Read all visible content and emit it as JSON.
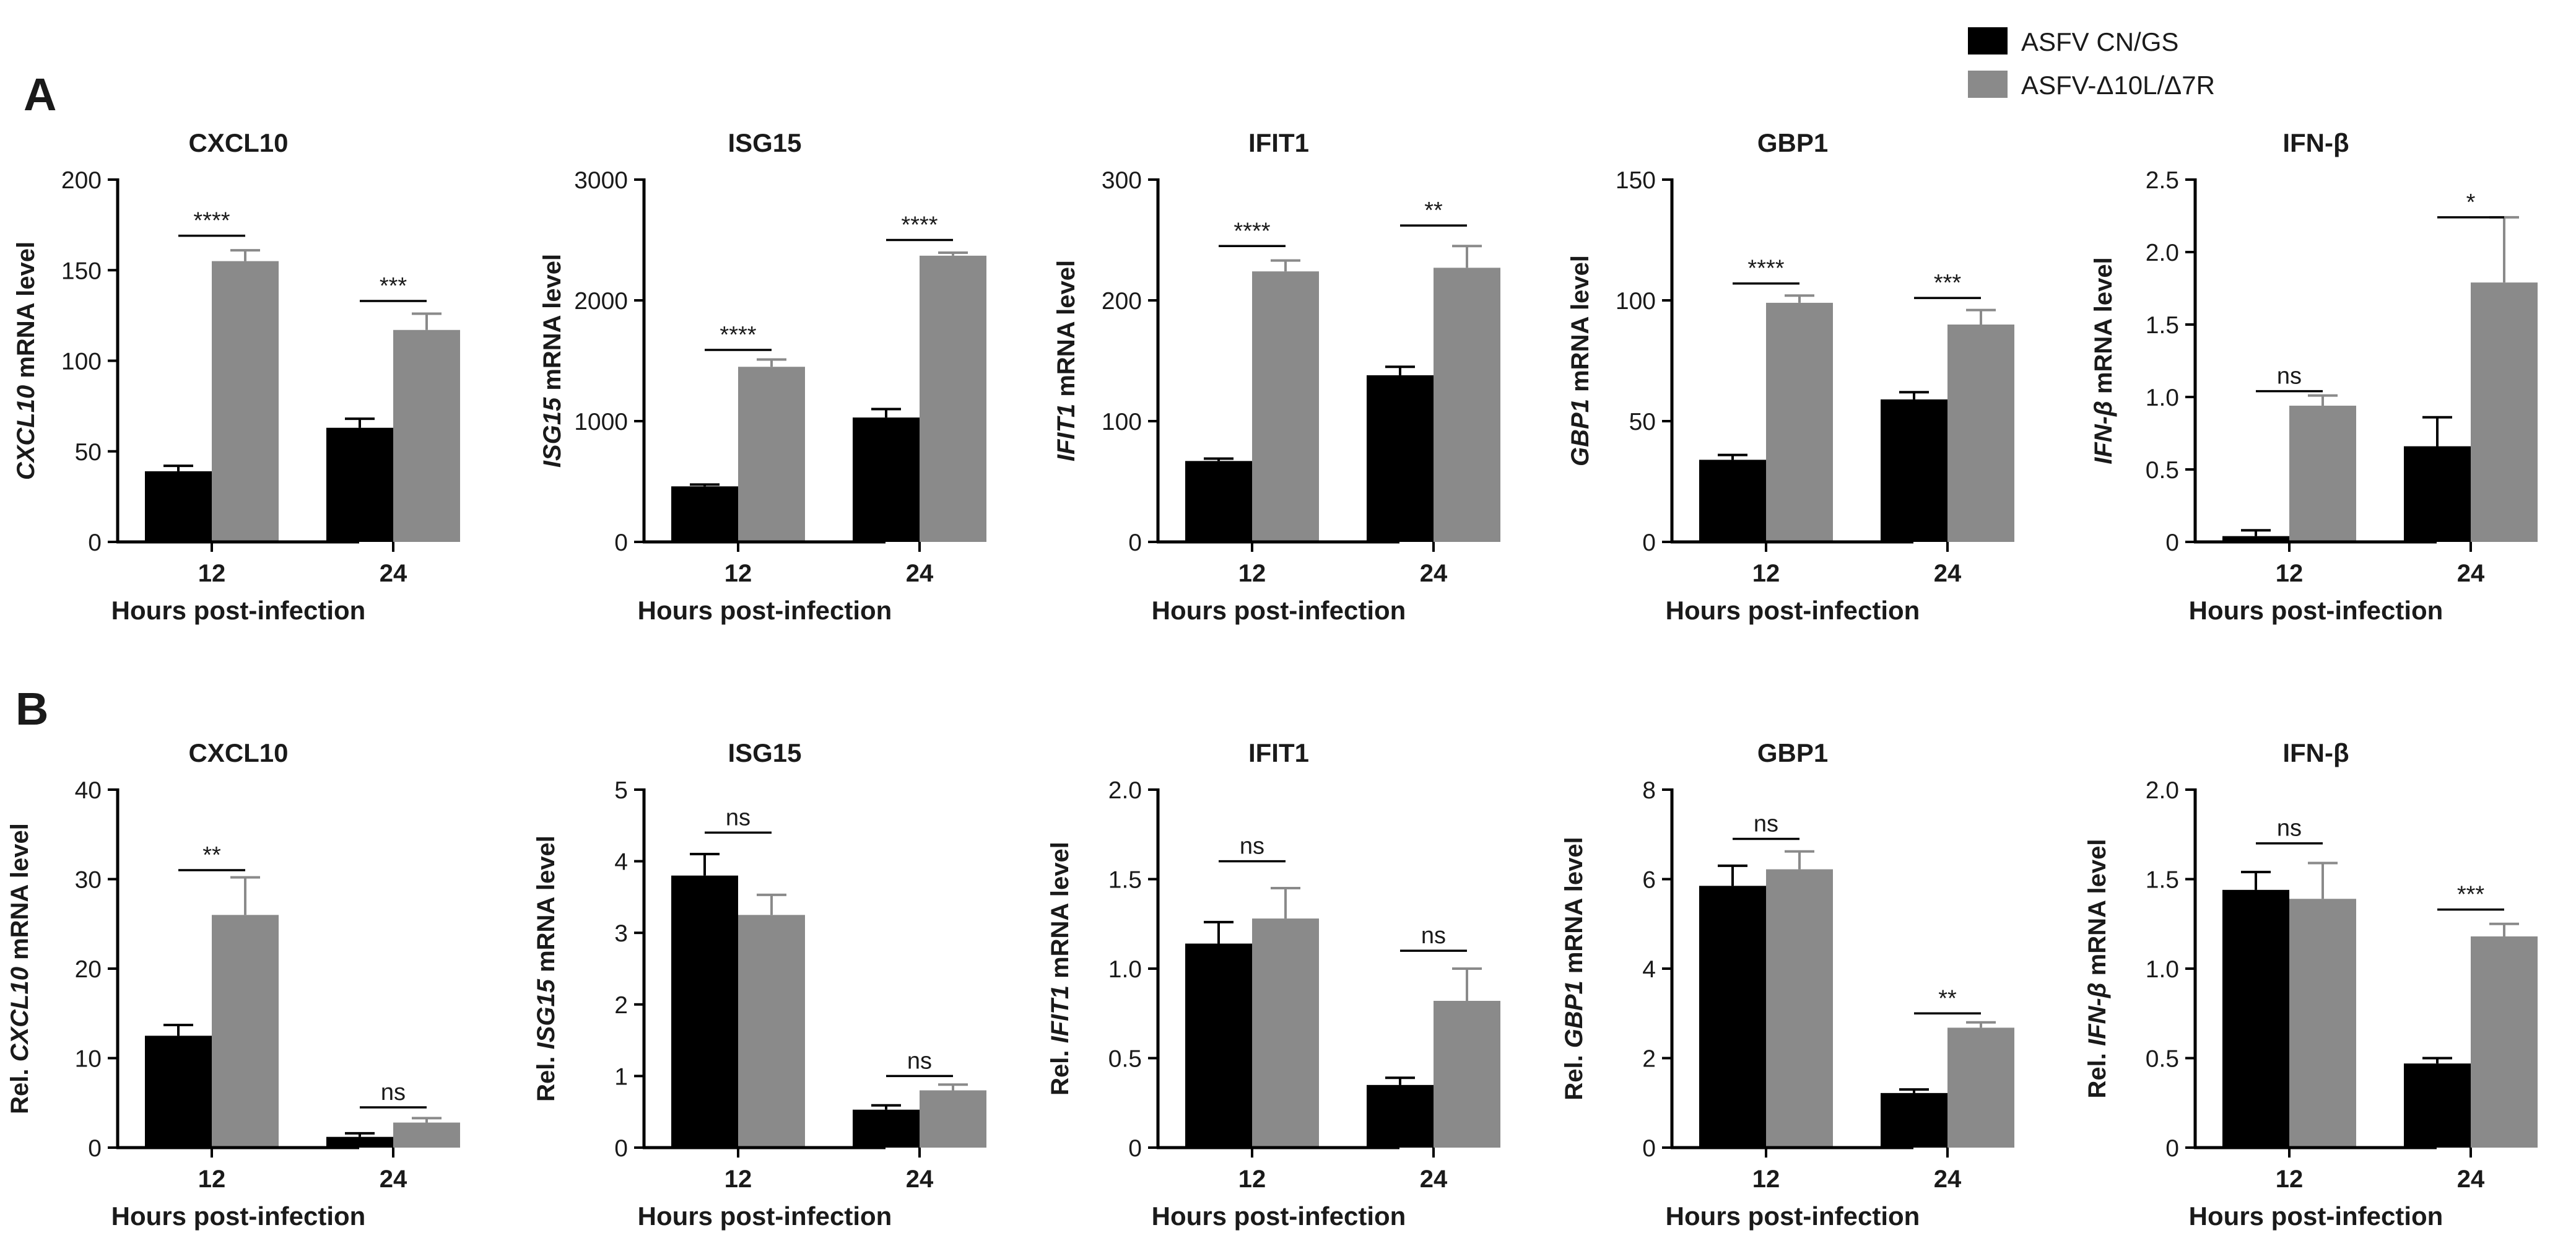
{
  "figure": {
    "panel_letters": [
      "A",
      "B"
    ],
    "xlabel": "Hours post-infection",
    "legend": {
      "placement": "top-right",
      "entries": [
        {
          "label": "ASFV CN/GS",
          "color": "#000000"
        },
        {
          "label": "ASFV-Δ10L/Δ7R",
          "color": "#8a8a8a"
        }
      ]
    }
  },
  "chart_data": [
    {
      "type": "bar",
      "panel": "A",
      "title": "CXCL10",
      "ylabel": {
        "prefix": "",
        "gene": "CXCL10",
        "suffix": " mRNA level"
      },
      "categories": [
        "12",
        "24"
      ],
      "ylim": [
        0,
        200
      ],
      "yticks": [
        0,
        50,
        100,
        150,
        200
      ],
      "series": [
        {
          "values": [
            39,
            63
          ],
          "errors": [
            3,
            5
          ],
          "color": "#000000"
        },
        {
          "values": [
            155,
            117
          ],
          "errors": [
            6,
            9
          ],
          "color": "#8a8a8a"
        }
      ],
      "significance": [
        {
          "category": "12",
          "label": "****",
          "level": 169
        },
        {
          "category": "24",
          "label": "***",
          "level": 133
        }
      ]
    },
    {
      "type": "bar",
      "panel": "A",
      "title": "ISG15",
      "ylabel": {
        "prefix": "",
        "gene": "ISG15",
        "suffix": " mRNA level"
      },
      "categories": [
        "12",
        "24"
      ],
      "ylim": [
        0,
        3000
      ],
      "yticks": [
        0,
        1000,
        2000,
        3000
      ],
      "series": [
        {
          "values": [
            460,
            1030
          ],
          "errors": [
            15,
            70
          ],
          "color": "#000000"
        },
        {
          "values": [
            1450,
            2370
          ],
          "errors": [
            60,
            25
          ],
          "color": "#8a8a8a"
        }
      ],
      "significance": [
        {
          "category": "12",
          "label": "****",
          "level": 1590
        },
        {
          "category": "24",
          "label": "****",
          "level": 2500
        }
      ]
    },
    {
      "type": "bar",
      "panel": "A",
      "title": "IFIT1",
      "ylabel": {
        "prefix": "",
        "gene": "IFIT1",
        "suffix": " mRNA level"
      },
      "categories": [
        "12",
        "24"
      ],
      "ylim": [
        0,
        300
      ],
      "yticks": [
        0,
        100,
        200,
        300
      ],
      "series": [
        {
          "values": [
            67,
            138
          ],
          "errors": [
            2,
            7
          ],
          "color": "#000000"
        },
        {
          "values": [
            224,
            227
          ],
          "errors": [
            9,
            18
          ],
          "color": "#8a8a8a"
        }
      ],
      "significance": [
        {
          "category": "12",
          "label": "****",
          "level": 245
        },
        {
          "category": "24",
          "label": "**",
          "level": 262
        }
      ]
    },
    {
      "type": "bar",
      "panel": "A",
      "title": "GBP1",
      "ylabel": {
        "prefix": "",
        "gene": "GBP1",
        "suffix": " mRNA level"
      },
      "categories": [
        "12",
        "24"
      ],
      "ylim": [
        0,
        150
      ],
      "yticks": [
        0,
        50,
        100,
        150
      ],
      "series": [
        {
          "values": [
            34,
            59
          ],
          "errors": [
            2,
            3
          ],
          "color": "#000000"
        },
        {
          "values": [
            99,
            90
          ],
          "errors": [
            3,
            6
          ],
          "color": "#8a8a8a"
        }
      ],
      "significance": [
        {
          "category": "12",
          "label": "****",
          "level": 107
        },
        {
          "category": "24",
          "label": "***",
          "level": 101
        }
      ]
    },
    {
      "type": "bar",
      "panel": "A",
      "title": "IFN-β",
      "ylabel": {
        "prefix": "",
        "gene": "IFN-β",
        "suffix": " mRNA level"
      },
      "categories": [
        "12",
        "24"
      ],
      "ylim": [
        0,
        2.5
      ],
      "yticks": [
        "0",
        "0.5",
        "1.0",
        "1.5",
        "2.0",
        "2.5"
      ],
      "series": [
        {
          "values": [
            0.04,
            0.66
          ],
          "errors": [
            0.04,
            0.2
          ],
          "color": "#000000"
        },
        {
          "values": [
            0.94,
            1.79
          ],
          "errors": [
            0.07,
            0.45
          ],
          "color": "#8a8a8a"
        }
      ],
      "significance": [
        {
          "category": "12",
          "label": "ns",
          "level": 1.04
        },
        {
          "category": "24",
          "label": "*",
          "level": 2.24
        }
      ]
    },
    {
      "type": "bar",
      "panel": "B",
      "title": "CXCL10",
      "ylabel": {
        "prefix": "Rel. ",
        "gene": "CXCL10",
        "suffix": " mRNA level"
      },
      "categories": [
        "12",
        "24"
      ],
      "ylim": [
        0,
        40
      ],
      "yticks": [
        0,
        10,
        20,
        30,
        40
      ],
      "series": [
        {
          "values": [
            12.5,
            1.2
          ],
          "errors": [
            1.2,
            0.4
          ],
          "color": "#000000"
        },
        {
          "values": [
            26,
            2.8
          ],
          "errors": [
            4.2,
            0.5
          ],
          "color": "#8a8a8a"
        }
      ],
      "significance": [
        {
          "category": "12",
          "label": "**",
          "level": 31
        },
        {
          "category": "24",
          "label": "ns",
          "level": 4.5
        }
      ]
    },
    {
      "type": "bar",
      "panel": "B",
      "title": "ISG15",
      "ylabel": {
        "prefix": "Rel. ",
        "gene": "ISG15",
        "suffix": " mRNA level"
      },
      "categories": [
        "12",
        "24"
      ],
      "ylim": [
        0,
        5
      ],
      "yticks": [
        0,
        1,
        2,
        3,
        4,
        5
      ],
      "series": [
        {
          "values": [
            3.8,
            0.53
          ],
          "errors": [
            0.3,
            0.06
          ],
          "color": "#000000"
        },
        {
          "values": [
            3.25,
            0.8
          ],
          "errors": [
            0.28,
            0.08
          ],
          "color": "#8a8a8a"
        }
      ],
      "significance": [
        {
          "category": "12",
          "label": "ns",
          "level": 4.4
        },
        {
          "category": "24",
          "label": "ns",
          "level": 1.0
        }
      ]
    },
    {
      "type": "bar",
      "panel": "B",
      "title": "IFIT1",
      "ylabel": {
        "prefix": "Rel. ",
        "gene": "IFIT1",
        "suffix": " mRNA level"
      },
      "categories": [
        "12",
        "24"
      ],
      "ylim": [
        0,
        2.0
      ],
      "yticks": [
        "0",
        "0.5",
        "1.0",
        "1.5",
        "2.0"
      ],
      "series": [
        {
          "values": [
            1.14,
            0.35
          ],
          "errors": [
            0.12,
            0.04
          ],
          "color": "#000000"
        },
        {
          "values": [
            1.28,
            0.82
          ],
          "errors": [
            0.17,
            0.18
          ],
          "color": "#8a8a8a"
        }
      ],
      "significance": [
        {
          "category": "12",
          "label": "ns",
          "level": 1.6
        },
        {
          "category": "24",
          "label": "ns",
          "level": 1.1
        }
      ]
    },
    {
      "type": "bar",
      "panel": "B",
      "title": "GBP1",
      "ylabel": {
        "prefix": "Rel. ",
        "gene": "GBP1",
        "suffix": " mRNA level"
      },
      "categories": [
        "12",
        "24"
      ],
      "ylim": [
        0,
        8
      ],
      "yticks": [
        0,
        2,
        4,
        6,
        8
      ],
      "series": [
        {
          "values": [
            5.85,
            1.22
          ],
          "errors": [
            0.45,
            0.08
          ],
          "color": "#000000"
        },
        {
          "values": [
            6.22,
            2.68
          ],
          "errors": [
            0.4,
            0.12
          ],
          "color": "#8a8a8a"
        }
      ],
      "significance": [
        {
          "category": "12",
          "label": "ns",
          "level": 6.9
        },
        {
          "category": "24",
          "label": "**",
          "level": 3.0
        }
      ]
    },
    {
      "type": "bar",
      "panel": "B",
      "title": "IFN-β",
      "ylabel": {
        "prefix": "Rel. ",
        "gene": "IFN-β",
        "suffix": " mRNA level"
      },
      "categories": [
        "12",
        "24"
      ],
      "ylim": [
        0,
        2.0
      ],
      "yticks": [
        "0",
        "0.5",
        "1.0",
        "1.5",
        "2.0"
      ],
      "series": [
        {
          "values": [
            1.44,
            0.47
          ],
          "errors": [
            0.1,
            0.03
          ],
          "color": "#000000"
        },
        {
          "values": [
            1.39,
            1.18
          ],
          "errors": [
            0.2,
            0.07
          ],
          "color": "#8a8a8a"
        }
      ],
      "significance": [
        {
          "category": "12",
          "label": "ns",
          "level": 1.7
        },
        {
          "category": "24",
          "label": "***",
          "level": 1.33
        }
      ]
    }
  ]
}
